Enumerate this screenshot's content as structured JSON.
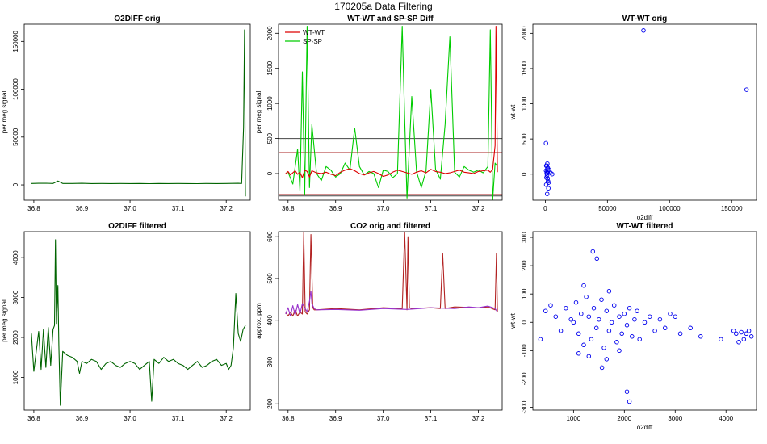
{
  "figure": {
    "title": "170205a   Data Filtering"
  },
  "chart_data": [
    {
      "id": "o2diff-orig",
      "type": "line",
      "title": "O2DIFF orig",
      "xlabel": "",
      "ylabel": "per meg signal",
      "xlim": [
        36.78,
        37.25
      ],
      "ylim": [
        -16000,
        168000
      ],
      "xticks": [
        "36.8",
        "36.9",
        "37.0",
        "37.1",
        "37.2"
      ],
      "xtick_values": [
        36.8,
        36.9,
        37.0,
        37.1,
        37.2
      ],
      "yticks": [
        "0",
        "50000",
        "100000",
        "150000"
      ],
      "ytick_values": [
        0,
        50000,
        100000,
        150000
      ],
      "series": [
        {
          "color": "#006400",
          "x": [
            36.795,
            36.81,
            36.825,
            36.84,
            36.85,
            36.86,
            36.88,
            36.9,
            36.92,
            36.94,
            36.96,
            36.98,
            37.0,
            37.02,
            37.04,
            37.06,
            37.08,
            37.1,
            37.12,
            37.14,
            37.16,
            37.18,
            37.2,
            37.225,
            37.232,
            37.236,
            37.238,
            37.24
          ],
          "y": [
            1500,
            1600,
            1700,
            1500,
            4000,
            1500,
            1500,
            1600,
            1400,
            1500,
            1400,
            1500,
            1400,
            1500,
            1300,
            1500,
            1400,
            1500,
            1400,
            1300,
            1500,
            1400,
            1500,
            1600,
            1500,
            60000,
            162000,
            -12000
          ]
        }
      ]
    },
    {
      "id": "wt-sp-diff",
      "type": "line",
      "title": "WT-WT and SP-SP Diff",
      "xlabel": "",
      "ylabel": "per meg signal",
      "xlim": [
        36.78,
        37.25
      ],
      "ylim": [
        -380,
        2130
      ],
      "xticks": [
        "36.8",
        "36.9",
        "37.0",
        "37.1",
        "37.2"
      ],
      "xtick_values": [
        36.8,
        36.9,
        37.0,
        37.1,
        37.2
      ],
      "yticks": [
        "0",
        "500",
        "1000",
        "1500",
        "2000"
      ],
      "ytick_values": [
        0,
        500,
        1000,
        1500,
        2000
      ],
      "legend": [
        {
          "name": "WT-WT",
          "color": "#dd0000"
        },
        {
          "name": "SP-SP",
          "color": "#00cc00"
        }
      ],
      "legend_position": "top-left",
      "hlines": [
        {
          "y": 500,
          "color": "#444444"
        },
        {
          "y": 300,
          "color": "#aa2222"
        },
        {
          "y": -300,
          "color": "#aa2222"
        },
        {
          "y": -320,
          "color": "#444444"
        }
      ],
      "series": [
        {
          "name": "SP-SP",
          "color": "#00cc00",
          "x": [
            36.8,
            36.81,
            36.82,
            36.825,
            36.83,
            36.835,
            36.84,
            36.845,
            36.85,
            36.86,
            36.87,
            36.88,
            36.89,
            36.9,
            36.91,
            36.92,
            36.93,
            36.94,
            36.95,
            36.96,
            36.97,
            36.98,
            36.99,
            37.0,
            37.01,
            37.02,
            37.03,
            37.04,
            37.045,
            37.05,
            37.06,
            37.07,
            37.08,
            37.09,
            37.1,
            37.11,
            37.12,
            37.13,
            37.14,
            37.15,
            37.16,
            37.17,
            37.18,
            37.19,
            37.2,
            37.21,
            37.22,
            37.225,
            37.23,
            37.235,
            37.24
          ],
          "y": [
            20,
            -150,
            350,
            -250,
            1450,
            -300,
            2100,
            -200,
            700,
            0,
            -100,
            100,
            50,
            -50,
            0,
            150,
            50,
            650,
            100,
            -20,
            30,
            0,
            -200,
            50,
            30,
            -60,
            0,
            2100,
            800,
            -350,
            1100,
            30,
            -200,
            40,
            1200,
            60,
            -80,
            700,
            1950,
            20,
            -50,
            100,
            50,
            20,
            50,
            10,
            100,
            2050,
            -380,
            150,
            100
          ]
        },
        {
          "name": "WT-WT",
          "color": "#dd0000",
          "x": [
            36.795,
            36.8,
            36.805,
            36.81,
            36.815,
            36.82,
            36.825,
            36.83,
            36.835,
            36.84,
            36.845,
            36.85,
            36.86,
            36.87,
            36.88,
            36.89,
            36.9,
            36.91,
            36.92,
            36.93,
            36.94,
            36.95,
            36.96,
            36.97,
            36.98,
            36.99,
            37.0,
            37.01,
            37.02,
            37.03,
            37.04,
            37.05,
            37.06,
            37.07,
            37.08,
            37.09,
            37.1,
            37.11,
            37.12,
            37.13,
            37.14,
            37.15,
            37.16,
            37.17,
            37.18,
            37.19,
            37.2,
            37.21,
            37.22,
            37.225,
            37.23,
            37.235,
            37.237,
            37.24
          ],
          "y": [
            0,
            30,
            -20,
            10,
            40,
            -10,
            20,
            -60,
            50,
            30,
            -50,
            40,
            10,
            0,
            20,
            -10,
            -30,
            20,
            50,
            70,
            40,
            0,
            -20,
            10,
            30,
            0,
            -40,
            -20,
            20,
            50,
            30,
            10,
            -10,
            20,
            40,
            10,
            60,
            30,
            20,
            0,
            10,
            30,
            50,
            20,
            10,
            0,
            30,
            40,
            50,
            20,
            60,
            400,
            2100,
            20
          ]
        }
      ]
    },
    {
      "id": "wt-orig",
      "type": "scatter",
      "title": "WT-WT orig",
      "xlabel": "o2diff",
      "ylabel": "wt-wt",
      "xlim": [
        -10000,
        170000
      ],
      "ylim": [
        -370,
        2130
      ],
      "xticks": [
        "0",
        "50000",
        "100000",
        "150000"
      ],
      "xtick_values": [
        0,
        50000,
        100000,
        150000
      ],
      "yticks": [
        "0",
        "500",
        "1000",
        "1500",
        "2000"
      ],
      "ytick_values": [
        0,
        500,
        1000,
        1500,
        2000
      ],
      "series": [
        {
          "color": "#0000ee",
          "marker": "circle-open",
          "x": [
            79000,
            162000,
            -12000,
            500,
            1200,
            1500,
            2000,
            2500,
            900,
            1800,
            3000,
            600,
            1400,
            2200,
            1100,
            1700,
            800,
            2600,
            1300,
            1900,
            4200,
            5500,
            700,
            1600,
            2100
          ],
          "y": [
            2040,
            1200,
            440,
            440,
            120,
            -280,
            90,
            -200,
            -50,
            20,
            60,
            50,
            -20,
            -100,
            10,
            80,
            120,
            -120,
            30,
            -60,
            20,
            0,
            -150,
            150,
            40
          ]
        }
      ]
    },
    {
      "id": "o2diff-filtered",
      "type": "line",
      "title": "O2DIFF filtered",
      "xlabel": "",
      "ylabel": "per meg signal",
      "xlim": [
        36.78,
        37.25
      ],
      "ylim": [
        180,
        4650
      ],
      "xticks": [
        "36.8",
        "36.9",
        "37.0",
        "37.1",
        "37.2"
      ],
      "xtick_values": [
        36.8,
        36.9,
        37.0,
        37.1,
        37.2
      ],
      "yticks": [
        "1000",
        "2000",
        "3000",
        "4000"
      ],
      "ytick_values": [
        1000,
        2000,
        3000,
        4000
      ],
      "series": [
        {
          "color": "#006400",
          "x": [
            36.795,
            36.8,
            36.81,
            36.815,
            36.82,
            36.825,
            36.83,
            36.835,
            36.84,
            36.843,
            36.845,
            36.847,
            36.85,
            36.852,
            36.855,
            36.86,
            36.87,
            36.88,
            36.89,
            36.895,
            36.9,
            36.91,
            36.92,
            36.93,
            36.94,
            36.95,
            36.96,
            36.97,
            36.98,
            36.99,
            37.0,
            37.01,
            37.02,
            37.03,
            37.04,
            37.045,
            37.05,
            37.06,
            37.07,
            37.08,
            37.09,
            37.1,
            37.11,
            37.12,
            37.13,
            37.14,
            37.15,
            37.16,
            37.17,
            37.18,
            37.19,
            37.2,
            37.205,
            37.21,
            37.215,
            37.22,
            37.225,
            37.23,
            37.235,
            37.24
          ],
          "y": [
            2100,
            1150,
            2150,
            1200,
            2200,
            1250,
            2250,
            1300,
            2200,
            2300,
            4450,
            2350,
            3300,
            1800,
            300,
            1650,
            1550,
            1500,
            1400,
            1100,
            1400,
            1350,
            1450,
            1400,
            1200,
            1350,
            1400,
            1300,
            1250,
            1350,
            1400,
            1350,
            1200,
            1300,
            1400,
            400,
            1450,
            1350,
            1500,
            1400,
            1450,
            1350,
            1300,
            1200,
            1300,
            1400,
            1250,
            1300,
            1400,
            1450,
            1300,
            1350,
            1200,
            1300,
            1750,
            3100,
            2100,
            1900,
            2200,
            2300
          ]
        }
      ]
    },
    {
      "id": "co2-orig-filtered",
      "type": "line",
      "title": "CO2 orig and filtered",
      "xlabel": "",
      "ylabel": "approx. ppm",
      "xlim": [
        36.78,
        37.25
      ],
      "ylim": [
        185,
        612
      ],
      "xticks": [
        "36.8",
        "36.9",
        "37.0",
        "37.1",
        "37.2"
      ],
      "xtick_values": [
        36.8,
        36.9,
        37.0,
        37.1,
        37.2
      ],
      "yticks": [
        "200",
        "300",
        "400",
        "500",
        "600"
      ],
      "ytick_values": [
        200,
        300,
        400,
        500,
        600
      ],
      "series": [
        {
          "color": "#b22222",
          "x": [
            36.795,
            36.8,
            36.805,
            36.81,
            36.815,
            36.82,
            36.825,
            36.83,
            36.833,
            36.836,
            36.84,
            36.845,
            36.848,
            36.852,
            36.855,
            36.86,
            36.9,
            36.95,
            37.0,
            37.04,
            37.045,
            37.05,
            37.052,
            37.055,
            37.06,
            37.1,
            37.12,
            37.125,
            37.13,
            37.15,
            37.2,
            37.22,
            37.235,
            37.238,
            37.24
          ],
          "y": [
            420,
            410,
            420,
            410,
            425,
            410,
            420,
            415,
            610,
            420,
            415,
            425,
            605,
            430,
            425,
            425,
            428,
            425,
            430,
            428,
            610,
            425,
            600,
            430,
            428,
            430,
            428,
            560,
            428,
            432,
            430,
            432,
            425,
            560,
            420
          ]
        },
        {
          "color": "#9932cc",
          "x": [
            36.795,
            36.8,
            36.805,
            36.81,
            36.815,
            36.82,
            36.825,
            36.83,
            36.84,
            36.845,
            36.848,
            36.85,
            36.855,
            36.86,
            36.9,
            36.95,
            37.0,
            37.05,
            37.1,
            37.15,
            37.18,
            37.2,
            37.22,
            37.235,
            37.24
          ],
          "y": [
            415,
            430,
            410,
            435,
            412,
            438,
            415,
            440,
            420,
            445,
            470,
            440,
            428,
            425,
            426,
            424,
            428,
            426,
            430,
            428,
            432,
            430,
            434,
            428,
            420
          ]
        }
      ]
    },
    {
      "id": "wt-filtered",
      "type": "scatter",
      "title": "WT-WT filtered",
      "xlabel": "o2diff",
      "ylabel": "wt-wt",
      "xlim": [
        200,
        4600
      ],
      "ylim": [
        -310,
        320
      ],
      "xticks": [
        "1000",
        "2000",
        "3000",
        "4000"
      ],
      "xtick_values": [
        1000,
        2000,
        3000,
        4000
      ],
      "yticks": [
        "-300",
        "-200",
        "-100",
        "0",
        "100",
        "200",
        "300"
      ],
      "ytick_values": [
        -300,
        -200,
        -100,
        0,
        100,
        200,
        300
      ],
      "series": [
        {
          "color": "#0000ee",
          "marker": "circle-open",
          "x": [
            350,
            450,
            550,
            650,
            750,
            850,
            950,
            1000,
            1050,
            1100,
            1150,
            1200,
            1250,
            1300,
            1350,
            1400,
            1450,
            1500,
            1550,
            1600,
            1650,
            1700,
            1750,
            1800,
            1850,
            1900,
            1950,
            2000,
            2050,
            2100,
            2150,
            2200,
            2250,
            2300,
            2400,
            2500,
            2600,
            2700,
            2800,
            2900,
            3000,
            3100,
            3300,
            3500,
            3900,
            4150,
            4200,
            4250,
            4300,
            4350,
            4400,
            4450,
            4500,
            1380,
            1460,
            1900,
            2050,
            2100,
            1560,
            1200,
            1700,
            1300,
            1650,
            1100
          ],
          "y": [
            -60,
            40,
            60,
            20,
            -30,
            50,
            10,
            0,
            70,
            -40,
            30,
            -80,
            90,
            20,
            -60,
            50,
            -20,
            10,
            80,
            -90,
            40,
            -30,
            0,
            60,
            -70,
            20,
            -40,
            30,
            -10,
            50,
            -50,
            10,
            40,
            -60,
            0,
            20,
            -30,
            10,
            -20,
            30,
            20,
            -40,
            -20,
            -50,
            -60,
            -30,
            -40,
            -70,
            -35,
            -60,
            -40,
            -30,
            -50,
            250,
            225,
            -100,
            -245,
            -280,
            -160,
            130,
            110,
            -120,
            -130,
            -110
          ]
        }
      ]
    }
  ]
}
